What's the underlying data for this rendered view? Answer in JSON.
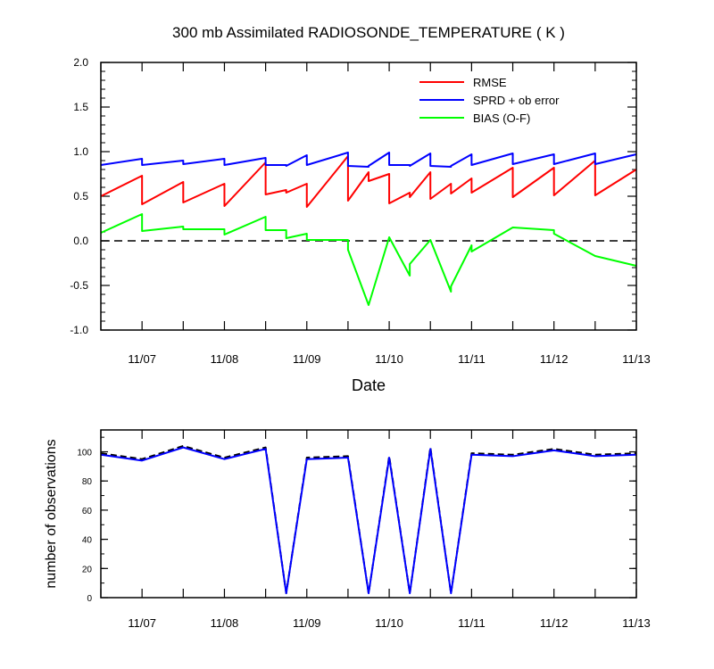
{
  "chart_data": [
    {
      "type": "line",
      "title": "300 mb Assimilated RADIOSONDE_TEMPERATURE ( K )",
      "xlabel": "Date",
      "ylabel": "",
      "x_ticks": [
        "11/07",
        "11/08",
        "11/09",
        "11/10",
        "11/11",
        "11/12",
        "11/13"
      ],
      "x_range": [
        0,
        6.5
      ],
      "ylim": [
        -1.0,
        2.0
      ],
      "y_ticks": [
        "2.0",
        "1.5",
        "1.0",
        "0.5",
        "0.0",
        "-0.5",
        "-1.0"
      ],
      "reference_line": {
        "y": 0.0,
        "style": "dashed",
        "color": "#000000"
      },
      "legend": {
        "placement": "top-right"
      },
      "series": [
        {
          "name": "RMSE",
          "color": "#ff0000",
          "points": [
            [
              0,
              0.5
            ],
            [
              0.5,
              0.73
            ],
            [
              0.5,
              0.41
            ],
            [
              1,
              0.66
            ],
            [
              1,
              0.43
            ],
            [
              1.5,
              0.64
            ],
            [
              1.5,
              0.39
            ],
            [
              2,
              0.88
            ],
            [
              2,
              0.52
            ],
            [
              2.25,
              0.57
            ],
            [
              2.25,
              0.54
            ],
            [
              2.5,
              0.64
            ],
            [
              2.5,
              0.38
            ],
            [
              3,
              0.95
            ],
            [
              3,
              0.45
            ],
            [
              3.25,
              0.77
            ],
            [
              3.25,
              0.67
            ],
            [
              3.5,
              0.75
            ],
            [
              3.5,
              0.42
            ],
            [
              3.75,
              0.54
            ],
            [
              3.75,
              0.49
            ],
            [
              4,
              0.77
            ],
            [
              4,
              0.47
            ],
            [
              4.25,
              0.64
            ],
            [
              4.25,
              0.53
            ],
            [
              4.5,
              0.7
            ],
            [
              4.5,
              0.54
            ],
            [
              5,
              0.82
            ],
            [
              5,
              0.49
            ],
            [
              5.5,
              0.82
            ],
            [
              5.5,
              0.51
            ],
            [
              6,
              0.9
            ],
            [
              6,
              0.51
            ],
            [
              6.5,
              0.8
            ]
          ]
        },
        {
          "name": "SPRD + ob error",
          "color": "#0000ff",
          "points": [
            [
              0,
              0.85
            ],
            [
              0.5,
              0.92
            ],
            [
              0.5,
              0.85
            ],
            [
              1,
              0.9
            ],
            [
              1,
              0.86
            ],
            [
              1.5,
              0.92
            ],
            [
              1.5,
              0.85
            ],
            [
              2,
              0.93
            ],
            [
              2,
              0.85
            ],
            [
              2.25,
              0.85
            ],
            [
              2.25,
              0.84
            ],
            [
              2.5,
              0.96
            ],
            [
              2.5,
              0.85
            ],
            [
              3,
              0.99
            ],
            [
              3,
              0.84
            ],
            [
              3.25,
              0.83
            ],
            [
              3.25,
              0.84
            ],
            [
              3.5,
              0.99
            ],
            [
              3.5,
              0.85
            ],
            [
              3.75,
              0.85
            ],
            [
              3.75,
              0.84
            ],
            [
              4,
              0.98
            ],
            [
              4,
              0.84
            ],
            [
              4.25,
              0.83
            ],
            [
              4.25,
              0.84
            ],
            [
              4.5,
              0.97
            ],
            [
              4.5,
              0.85
            ],
            [
              5,
              0.98
            ],
            [
              5,
              0.86
            ],
            [
              5.5,
              0.97
            ],
            [
              5.5,
              0.86
            ],
            [
              6,
              0.98
            ],
            [
              6,
              0.86
            ],
            [
              6.5,
              0.97
            ]
          ]
        },
        {
          "name": "BIAS (O-F)",
          "color": "#00ff00",
          "points": [
            [
              0,
              0.09
            ],
            [
              0.5,
              0.3
            ],
            [
              0.5,
              0.11
            ],
            [
              1,
              0.16
            ],
            [
              1,
              0.13
            ],
            [
              1.5,
              0.13
            ],
            [
              1.5,
              0.07
            ],
            [
              2,
              0.27
            ],
            [
              2,
              0.12
            ],
            [
              2.25,
              0.12
            ],
            [
              2.25,
              0.03
            ],
            [
              2.5,
              0.08
            ],
            [
              2.5,
              0.01
            ],
            [
              3,
              0.01
            ],
            [
              3,
              -0.1
            ],
            [
              3.25,
              -0.72
            ],
            [
              3.5,
              0.04
            ],
            [
              3.75,
              -0.39
            ],
            [
              3.75,
              -0.26
            ],
            [
              4,
              0.01
            ],
            [
              4.25,
              -0.57
            ],
            [
              4.25,
              -0.51
            ],
            [
              4.5,
              -0.05
            ],
            [
              4.5,
              -0.12
            ],
            [
              5,
              0.15
            ],
            [
              5.5,
              0.12
            ],
            [
              5.5,
              0.08
            ],
            [
              6,
              -0.17
            ],
            [
              6.5,
              -0.28
            ]
          ]
        }
      ]
    },
    {
      "type": "line",
      "title": "",
      "xlabel": "",
      "ylabel": "number of observations",
      "x_ticks": [
        "11/07",
        "11/08",
        "11/09",
        "11/10",
        "11/11",
        "11/12",
        "11/13"
      ],
      "x_range": [
        0,
        6.5
      ],
      "ylim": [
        0,
        115
      ],
      "y_ticks": [
        "100",
        "80",
        "60",
        "40",
        "20",
        "0"
      ],
      "series": [
        {
          "color": "#000000",
          "style": "dashed",
          "points": [
            [
              0,
              99
            ],
            [
              0.5,
              95
            ],
            [
              1,
              104
            ],
            [
              1.5,
              96
            ],
            [
              2,
              103
            ],
            [
              2.25,
              3
            ],
            [
              2.5,
              96
            ],
            [
              3,
              97
            ],
            [
              3.25,
              3
            ],
            [
              3.5,
              97
            ],
            [
              3.75,
              3
            ],
            [
              4,
              103
            ],
            [
              4.25,
              3
            ],
            [
              4.5,
              99
            ],
            [
              5,
              98
            ],
            [
              5.5,
              102
            ],
            [
              6,
              98
            ],
            [
              6.5,
              99
            ]
          ]
        },
        {
          "color": "#0000ff",
          "style": "solid",
          "points": [
            [
              0,
              98
            ],
            [
              0.5,
              94
            ],
            [
              1,
              103
            ],
            [
              1.5,
              95
            ],
            [
              2,
              102
            ],
            [
              2.25,
              3
            ],
            [
              2.5,
              95
            ],
            [
              3,
              96
            ],
            [
              3.25,
              3
            ],
            [
              3.5,
              96
            ],
            [
              3.75,
              3
            ],
            [
              4,
              102
            ],
            [
              4.25,
              3
            ],
            [
              4.5,
              98
            ],
            [
              5,
              97
            ],
            [
              5.5,
              101
            ],
            [
              6,
              97
            ],
            [
              6.5,
              98
            ]
          ]
        }
      ]
    }
  ]
}
